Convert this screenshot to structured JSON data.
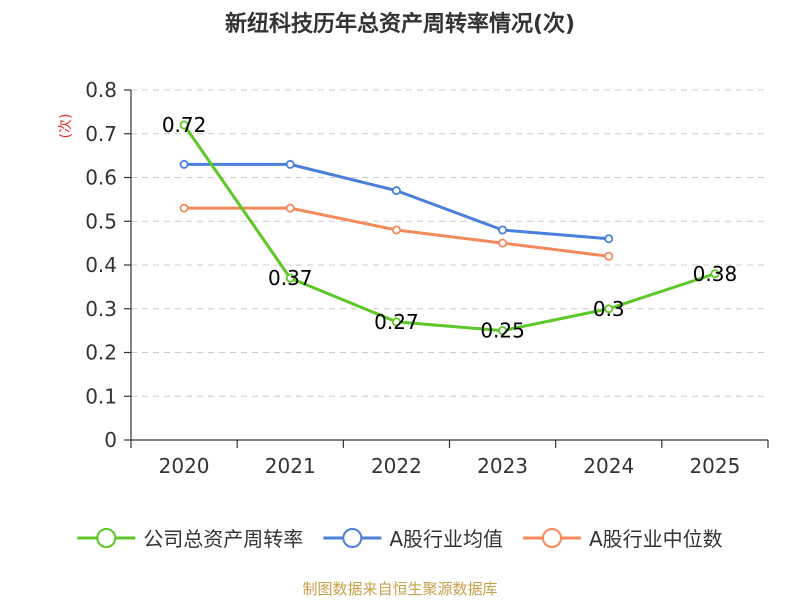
{
  "chart_data": {
    "type": "line",
    "title": "新纽科技历年总资产周转率情况(次)",
    "ylabel": "(次)",
    "xlabel": "",
    "categories": [
      "2020",
      "2021",
      "2022",
      "2023",
      "2024",
      "2025"
    ],
    "ylim": [
      0,
      0.8
    ],
    "yticks": [
      "0",
      "0.1",
      "0.2",
      "0.3",
      "0.4",
      "0.5",
      "0.6",
      "0.7",
      "0.8"
    ],
    "grid": true,
    "legend_position": "bottom",
    "series": [
      {
        "name": "公司总资产周转率",
        "color": "#5cc726",
        "values": [
          0.72,
          0.37,
          0.27,
          0.25,
          0.3,
          0.38
        ],
        "labels": [
          "0.72",
          "0.37",
          "0.27",
          "0.25",
          "0.3",
          "0.38"
        ]
      },
      {
        "name": "A股行业均值",
        "color": "#4a7fdc",
        "values": [
          0.63,
          0.63,
          0.57,
          0.48,
          0.46,
          null
        ]
      },
      {
        "name": "A股行业中位数",
        "color": "#f48a5c",
        "values": [
          0.53,
          0.53,
          0.48,
          0.45,
          0.42,
          null
        ]
      }
    ]
  },
  "source": "制图数据来自恒生聚源数据库"
}
